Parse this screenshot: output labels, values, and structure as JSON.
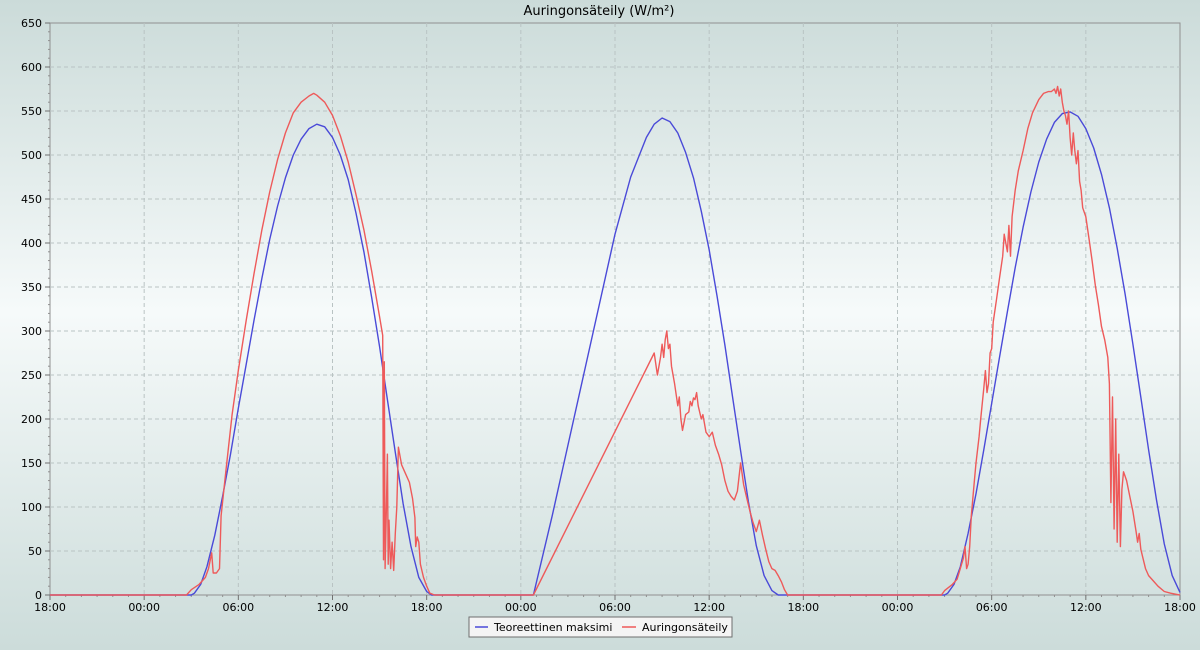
{
  "chart_data": {
    "type": "line",
    "title": "Auringonsäteily (W/m²)",
    "xlabel": "",
    "ylabel": "",
    "ylim": [
      0,
      650
    ],
    "xlim_hours": [
      0,
      72
    ],
    "y_ticks": [
      0,
      50,
      100,
      150,
      200,
      250,
      300,
      350,
      400,
      450,
      500,
      550,
      600,
      650
    ],
    "x_ticks": [
      {
        "h": 0,
        "label": "18:00"
      },
      {
        "h": 6,
        "label": "00:00"
      },
      {
        "h": 12,
        "label": "06:00"
      },
      {
        "h": 18,
        "label": "12:00"
      },
      {
        "h": 24,
        "label": "18:00"
      },
      {
        "h": 30,
        "label": "00:00"
      },
      {
        "h": 36,
        "label": "06:00"
      },
      {
        "h": 42,
        "label": "12:00"
      },
      {
        "h": 48,
        "label": "18:00"
      },
      {
        "h": 54,
        "label": "00:00"
      },
      {
        "h": 60,
        "label": "06:00"
      },
      {
        "h": 66,
        "label": "12:00"
      },
      {
        "h": 72,
        "label": "18:00"
      }
    ],
    "grid": true,
    "legend_placement": "bottom-center",
    "series": [
      {
        "name": "Teoreettinen maksimi",
        "color": "#4a4ad8",
        "points": [
          [
            0,
            0
          ],
          [
            9,
            0
          ],
          [
            9.2,
            2
          ],
          [
            9.6,
            12
          ],
          [
            10,
            32
          ],
          [
            10.5,
            68
          ],
          [
            11,
            112
          ],
          [
            11.5,
            160
          ],
          [
            12,
            212
          ],
          [
            12.5,
            262
          ],
          [
            13,
            312
          ],
          [
            13.5,
            360
          ],
          [
            14,
            404
          ],
          [
            14.5,
            442
          ],
          [
            15,
            474
          ],
          [
            15.5,
            500
          ],
          [
            16,
            518
          ],
          [
            16.5,
            530
          ],
          [
            17,
            535
          ],
          [
            17.5,
            532
          ],
          [
            18,
            520
          ],
          [
            18.5,
            500
          ],
          [
            19,
            472
          ],
          [
            19.5,
            434
          ],
          [
            20,
            390
          ],
          [
            20.5,
            338
          ],
          [
            21,
            282
          ],
          [
            21.5,
            222
          ],
          [
            22,
            162
          ],
          [
            22.5,
            104
          ],
          [
            23,
            55
          ],
          [
            23.5,
            20
          ],
          [
            24,
            4
          ],
          [
            24.3,
            0
          ],
          [
            30.8,
            0
          ],
          [
            32,
            90
          ],
          [
            33,
            170
          ],
          [
            34,
            250
          ],
          [
            35,
            330
          ],
          [
            36,
            410
          ],
          [
            37,
            475
          ],
          [
            38,
            520
          ],
          [
            38.5,
            535
          ],
          [
            39,
            542
          ],
          [
            39.5,
            538
          ],
          [
            40,
            525
          ],
          [
            40.5,
            503
          ],
          [
            41,
            474
          ],
          [
            41.5,
            436
          ],
          [
            42,
            392
          ],
          [
            42.5,
            340
          ],
          [
            43,
            284
          ],
          [
            43.5,
            224
          ],
          [
            44,
            164
          ],
          [
            44.5,
            106
          ],
          [
            45,
            56
          ],
          [
            45.5,
            22
          ],
          [
            46,
            5
          ],
          [
            46.4,
            0
          ],
          [
            57,
            0
          ],
          [
            57.2,
            2
          ],
          [
            57.6,
            12
          ],
          [
            58,
            32
          ],
          [
            58.5,
            70
          ],
          [
            59,
            115
          ],
          [
            59.5,
            165
          ],
          [
            60,
            218
          ],
          [
            60.5,
            270
          ],
          [
            61,
            322
          ],
          [
            61.5,
            372
          ],
          [
            62,
            418
          ],
          [
            62.5,
            458
          ],
          [
            63,
            492
          ],
          [
            63.5,
            518
          ],
          [
            64,
            537
          ],
          [
            64.5,
            547
          ],
          [
            65,
            549
          ],
          [
            65.5,
            544
          ],
          [
            66,
            530
          ],
          [
            66.5,
            508
          ],
          [
            67,
            478
          ],
          [
            67.5,
            440
          ],
          [
            68,
            394
          ],
          [
            68.5,
            342
          ],
          [
            69,
            285
          ],
          [
            69.5,
            225
          ],
          [
            70,
            165
          ],
          [
            70.5,
            108
          ],
          [
            71,
            58
          ],
          [
            71.5,
            22
          ],
          [
            72,
            3
          ]
        ]
      },
      {
        "name": "Auringonsäteily",
        "color": "#ee5a5a",
        "points": [
          [
            0,
            0
          ],
          [
            8.7,
            0
          ],
          [
            9,
            6
          ],
          [
            9.5,
            12
          ],
          [
            9.9,
            20
          ],
          [
            10.1,
            30
          ],
          [
            10.3,
            48
          ],
          [
            10.4,
            25
          ],
          [
            10.6,
            25
          ],
          [
            10.8,
            30
          ],
          [
            10.9,
            90
          ],
          [
            11.2,
            140
          ],
          [
            11.6,
            205
          ],
          [
            12,
            255
          ],
          [
            12.5,
            312
          ],
          [
            13,
            365
          ],
          [
            13.5,
            415
          ],
          [
            14,
            458
          ],
          [
            14.5,
            495
          ],
          [
            15,
            525
          ],
          [
            15.5,
            548
          ],
          [
            16,
            560
          ],
          [
            16.5,
            567
          ],
          [
            16.8,
            570
          ],
          [
            17,
            568
          ],
          [
            17.5,
            560
          ],
          [
            18,
            545
          ],
          [
            18.5,
            522
          ],
          [
            19,
            492
          ],
          [
            19.5,
            455
          ],
          [
            20,
            415
          ],
          [
            20.5,
            368
          ],
          [
            21,
            316
          ],
          [
            21.2,
            295
          ],
          [
            21.25,
            40
          ],
          [
            21.3,
            265
          ],
          [
            21.35,
            30
          ],
          [
            21.45,
            110
          ],
          [
            21.5,
            160
          ],
          [
            21.55,
            35
          ],
          [
            21.6,
            85
          ],
          [
            21.7,
            30
          ],
          [
            21.8,
            60
          ],
          [
            21.9,
            28
          ],
          [
            22,
            70
          ],
          [
            22.1,
            100
          ],
          [
            22.2,
            168
          ],
          [
            22.4,
            148
          ],
          [
            22.6,
            140
          ],
          [
            22.9,
            128
          ],
          [
            23.1,
            110
          ],
          [
            23.25,
            88
          ],
          [
            23.3,
            55
          ],
          [
            23.4,
            66
          ],
          [
            23.5,
            60
          ],
          [
            23.6,
            35
          ],
          [
            23.8,
            20
          ],
          [
            24,
            10
          ],
          [
            24.2,
            2
          ],
          [
            24.5,
            0
          ],
          [
            30.8,
            0
          ],
          [
            38.5,
            275
          ],
          [
            38.7,
            250
          ],
          [
            38.9,
            270
          ],
          [
            39,
            285
          ],
          [
            39.1,
            270
          ],
          [
            39.2,
            290
          ],
          [
            39.3,
            300
          ],
          [
            39.4,
            280
          ],
          [
            39.5,
            285
          ],
          [
            39.6,
            260
          ],
          [
            39.8,
            240
          ],
          [
            40,
            215
          ],
          [
            40.1,
            225
          ],
          [
            40.2,
            200
          ],
          [
            40.3,
            187
          ],
          [
            40.5,
            205
          ],
          [
            40.7,
            208
          ],
          [
            40.8,
            220
          ],
          [
            40.9,
            215
          ],
          [
            41,
            224
          ],
          [
            41.1,
            222
          ],
          [
            41.2,
            230
          ],
          [
            41.3,
            215
          ],
          [
            41.5,
            200
          ],
          [
            41.6,
            205
          ],
          [
            41.8,
            185
          ],
          [
            42,
            180
          ],
          [
            42.2,
            185
          ],
          [
            42.4,
            170
          ],
          [
            42.6,
            160
          ],
          [
            42.8,
            148
          ],
          [
            43,
            130
          ],
          [
            43.2,
            118
          ],
          [
            43.4,
            112
          ],
          [
            43.6,
            108
          ],
          [
            43.8,
            118
          ],
          [
            44,
            150
          ],
          [
            44.2,
            125
          ],
          [
            44.4,
            110
          ],
          [
            44.6,
            95
          ],
          [
            44.8,
            82
          ],
          [
            45,
            72
          ],
          [
            45.2,
            85
          ],
          [
            45.4,
            68
          ],
          [
            45.6,
            52
          ],
          [
            45.8,
            38
          ],
          [
            46,
            30
          ],
          [
            46.2,
            28
          ],
          [
            46.4,
            22
          ],
          [
            46.6,
            15
          ],
          [
            46.8,
            6
          ],
          [
            47,
            0
          ],
          [
            56.8,
            0
          ],
          [
            57,
            5
          ],
          [
            57.5,
            12
          ],
          [
            57.8,
            18
          ],
          [
            58,
            30
          ],
          [
            58.2,
            42
          ],
          [
            58.3,
            55
          ],
          [
            58.4,
            30
          ],
          [
            58.5,
            35
          ],
          [
            58.6,
            55
          ],
          [
            58.7,
            90
          ],
          [
            58.9,
            130
          ],
          [
            59,
            150
          ],
          [
            59.2,
            180
          ],
          [
            59.3,
            200
          ],
          [
            59.5,
            235
          ],
          [
            59.6,
            255
          ],
          [
            59.7,
            230
          ],
          [
            59.8,
            240
          ],
          [
            59.9,
            275
          ],
          [
            60,
            280
          ],
          [
            60.1,
            310
          ],
          [
            60.3,
            335
          ],
          [
            60.5,
            360
          ],
          [
            60.7,
            385
          ],
          [
            60.8,
            410
          ],
          [
            61,
            390
          ],
          [
            61.1,
            420
          ],
          [
            61.2,
            385
          ],
          [
            61.3,
            430
          ],
          [
            61.5,
            460
          ],
          [
            61.7,
            482
          ],
          [
            62,
            505
          ],
          [
            62.3,
            530
          ],
          [
            62.6,
            548
          ],
          [
            63,
            563
          ],
          [
            63.3,
            570
          ],
          [
            63.6,
            572
          ],
          [
            63.8,
            572
          ],
          [
            64,
            575
          ],
          [
            64.1,
            570
          ],
          [
            64.2,
            578
          ],
          [
            64.3,
            567
          ],
          [
            64.4,
            575
          ],
          [
            64.5,
            560
          ],
          [
            64.6,
            550
          ],
          [
            64.7,
            545
          ],
          [
            64.8,
            535
          ],
          [
            64.9,
            550
          ],
          [
            65,
            520
          ],
          [
            65.1,
            500
          ],
          [
            65.2,
            525
          ],
          [
            65.3,
            505
          ],
          [
            65.4,
            490
          ],
          [
            65.5,
            505
          ],
          [
            65.6,
            470
          ],
          [
            65.7,
            460
          ],
          [
            65.8,
            440
          ],
          [
            66,
            430
          ],
          [
            66.2,
            405
          ],
          [
            66.4,
            380
          ],
          [
            66.6,
            352
          ],
          [
            66.8,
            330
          ],
          [
            67,
            305
          ],
          [
            67.2,
            290
          ],
          [
            67.4,
            270
          ],
          [
            67.5,
            240
          ],
          [
            67.6,
            105
          ],
          [
            67.7,
            225
          ],
          [
            67.8,
            75
          ],
          [
            67.9,
            200
          ],
          [
            68,
            60
          ],
          [
            68.1,
            160
          ],
          [
            68.2,
            55
          ],
          [
            68.3,
            120
          ],
          [
            68.4,
            140
          ],
          [
            68.5,
            135
          ],
          [
            68.6,
            130
          ],
          [
            68.8,
            112
          ],
          [
            69,
            95
          ],
          [
            69.2,
            72
          ],
          [
            69.3,
            60
          ],
          [
            69.4,
            70
          ],
          [
            69.5,
            52
          ],
          [
            69.6,
            45
          ],
          [
            69.8,
            30
          ],
          [
            70,
            22
          ],
          [
            70.3,
            16
          ],
          [
            70.6,
            10
          ],
          [
            71,
            4
          ],
          [
            71.4,
            2
          ],
          [
            72,
            0
          ]
        ]
      }
    ]
  }
}
